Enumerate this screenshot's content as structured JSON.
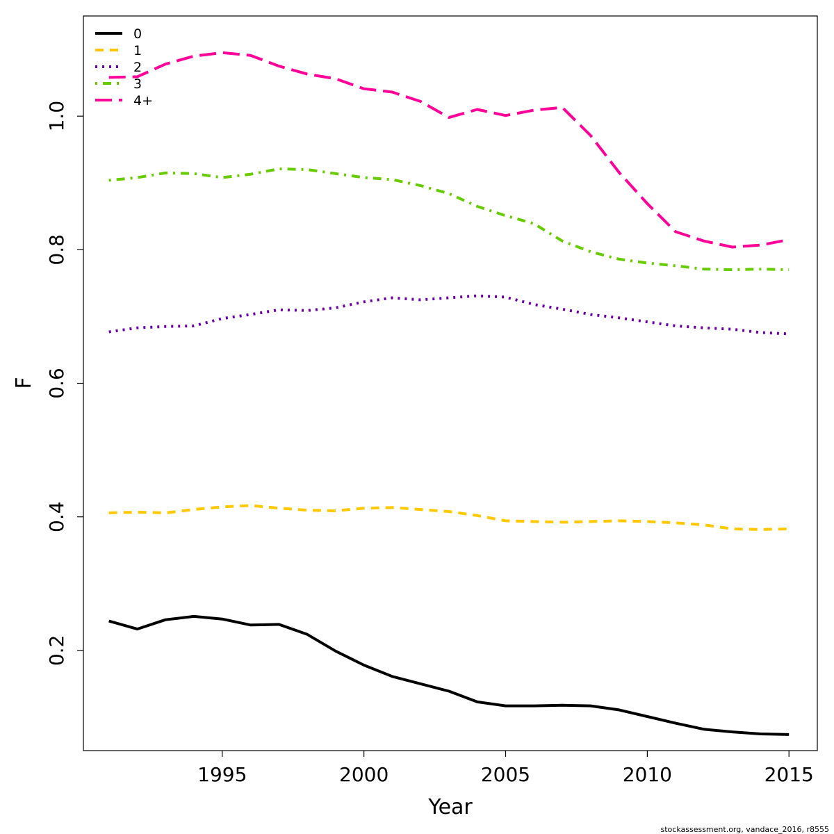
{
  "chart_data": {
    "type": "line",
    "xlabel": "Year",
    "ylabel": "F",
    "xlim": [
      1990.1,
      2016.0
    ],
    "ylim": [
      0.05,
      1.15
    ],
    "xticks": [
      1995,
      2000,
      2005,
      2010,
      2015
    ],
    "yticks": [
      0.2,
      0.4,
      0.6,
      0.8,
      1.0
    ],
    "ytick_labels": [
      "0.2",
      "0.4",
      "0.6",
      "0.8",
      "1.0"
    ],
    "legend_position": "top-left",
    "x": [
      1991,
      1992,
      1993,
      1994,
      1995,
      1996,
      1997,
      1998,
      1999,
      2000,
      2001,
      2002,
      2003,
      2004,
      2005,
      2006,
      2007,
      2008,
      2009,
      2010,
      2011,
      2012,
      2013,
      2014,
      2015
    ],
    "series": [
      {
        "name": "0",
        "color": "#000000",
        "dash": "solid",
        "values": [
          0.244,
          0.232,
          0.246,
          0.251,
          0.247,
          0.238,
          0.239,
          0.224,
          0.199,
          0.178,
          0.161,
          0.15,
          0.139,
          0.123,
          0.117,
          0.117,
          0.118,
          0.117,
          0.111,
          0.101,
          0.091,
          0.082,
          0.078,
          0.075,
          0.074
        ]
      },
      {
        "name": "1",
        "color": "#FFC800",
        "dash": "dashed",
        "values": [
          0.406,
          0.407,
          0.406,
          0.411,
          0.415,
          0.417,
          0.413,
          0.41,
          0.409,
          0.413,
          0.414,
          0.411,
          0.408,
          0.402,
          0.394,
          0.393,
          0.392,
          0.393,
          0.394,
          0.393,
          0.391,
          0.388,
          0.382,
          0.381,
          0.382
        ]
      },
      {
        "name": "2",
        "color": "#6B00A8",
        "dash": "dotted",
        "values": [
          0.677,
          0.683,
          0.685,
          0.686,
          0.697,
          0.703,
          0.71,
          0.709,
          0.713,
          0.722,
          0.728,
          0.725,
          0.728,
          0.731,
          0.729,
          0.718,
          0.711,
          0.703,
          0.698,
          0.692,
          0.686,
          0.683,
          0.681,
          0.676,
          0.674
        ]
      },
      {
        "name": "3",
        "color": "#66CC00",
        "dash": "dotdash",
        "values": [
          0.904,
          0.908,
          0.915,
          0.914,
          0.908,
          0.913,
          0.921,
          0.92,
          0.914,
          0.908,
          0.905,
          0.896,
          0.884,
          0.865,
          0.851,
          0.839,
          0.813,
          0.797,
          0.786,
          0.78,
          0.776,
          0.771,
          0.77,
          0.771,
          0.77
        ]
      },
      {
        "name": "4+",
        "color": "#FF0099",
        "dash": "longdash",
        "values": [
          1.058,
          1.059,
          1.078,
          1.09,
          1.095,
          1.091,
          1.075,
          1.063,
          1.056,
          1.041,
          1.036,
          1.022,
          0.998,
          1.01,
          1.001,
          1.009,
          1.013,
          0.971,
          0.916,
          0.869,
          0.827,
          0.813,
          0.804,
          0.807,
          0.815
        ]
      }
    ]
  },
  "footer_text": "stockassessment.org, vandace_2016, r8555"
}
